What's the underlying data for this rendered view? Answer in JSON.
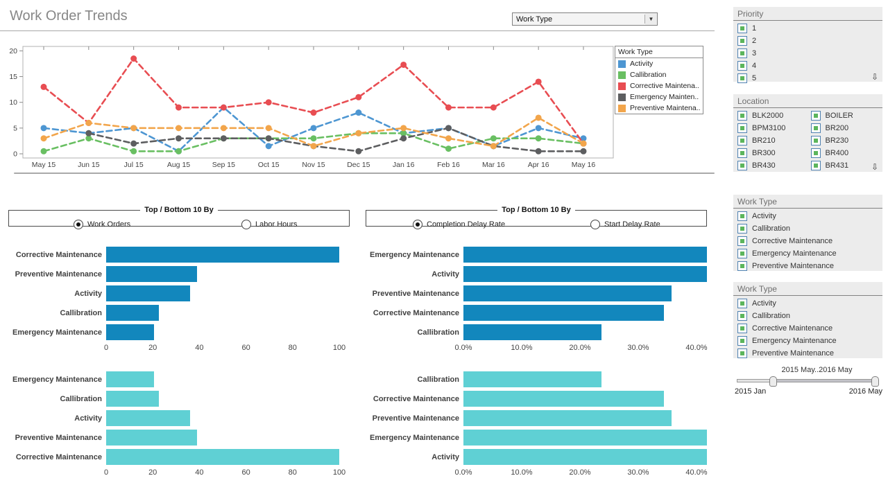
{
  "page": {
    "title": "Work Order Trends"
  },
  "toolbar": {
    "work_type_dropdown": {
      "value": "Work Type"
    }
  },
  "icons": {
    "dropdown_arrow": "▼",
    "overflow_arrow": "⇩"
  },
  "chart_data": [
    {
      "id": "work-order-trends",
      "type": "line",
      "legend_title": "Work Type",
      "legend_position": "right",
      "x": [
        "May 15",
        "Jun 15",
        "Jul 15",
        "Aug 15",
        "Sep 15",
        "Oct 15",
        "Nov 15",
        "Dec 15",
        "Jan 16",
        "Feb 16",
        "Mar 16",
        "Apr 16",
        "May 16"
      ],
      "ylim": [
        0,
        20
      ],
      "yticks": [
        0,
        5,
        10,
        15,
        20
      ],
      "line_style": "dashed",
      "series": [
        {
          "name": "Activity",
          "legend_label": "Activity",
          "color": "#4d96d2",
          "values": [
            5,
            4,
            5,
            0.5,
            9,
            1.5,
            5,
            8,
            4,
            5,
            1.5,
            5,
            3
          ]
        },
        {
          "name": "Callibration",
          "legend_label": "Callibration",
          "color": "#69bf62",
          "values": [
            0.5,
            3,
            0.5,
            0.5,
            3,
            3,
            3,
            4,
            4,
            1,
            3,
            3,
            2
          ]
        },
        {
          "name": "Corrective Maintenance",
          "legend_label": "Corrective Maintena..",
          "color": "#e84d52",
          "values": [
            13,
            6,
            18.5,
            9,
            9,
            10,
            8,
            11,
            17.3,
            9,
            9,
            14,
            2
          ]
        },
        {
          "name": "Emergency Maintenance",
          "legend_label": "Emergency Mainten..",
          "color": "#5d5e60",
          "values": [
            null,
            4,
            2,
            3,
            3,
            3,
            1.5,
            0.5,
            3,
            5,
            1.5,
            0.5,
            0.5
          ]
        },
        {
          "name": "Preventive Maintenance",
          "legend_label": "Preventive Maintena..",
          "color": "#f2a54b",
          "values": [
            3,
            6,
            5,
            5,
            5,
            5,
            1.5,
            4,
            5,
            3,
            1.5,
            7,
            2
          ]
        }
      ]
    },
    {
      "id": "work-orders-top5",
      "type": "bar",
      "orientation": "horizontal",
      "color": "#1287bd",
      "categories": [
        "Corrective Maintenance",
        "Preventive Maintenance",
        "Activity",
        "Callibration",
        "Emergency Maintenance"
      ],
      "values": [
        100,
        39,
        36,
        22.5,
        20.5
      ],
      "xticks": [
        "0",
        "20",
        "40",
        "60",
        "80",
        "100"
      ],
      "xtick_values": [
        0,
        20,
        40,
        60,
        80,
        100
      ],
      "xlim": [
        0,
        105
      ]
    },
    {
      "id": "work-orders-bottom5",
      "type": "bar",
      "orientation": "horizontal",
      "color": "#5fd0d4",
      "categories": [
        "Emergency Maintenance",
        "Callibration",
        "Activity",
        "Preventive Maintenance",
        "Corrective Maintenance"
      ],
      "values": [
        20.5,
        22.5,
        36,
        39,
        100
      ],
      "xticks": [
        "0",
        "20",
        "40",
        "60",
        "80",
        "100"
      ],
      "xtick_values": [
        0,
        20,
        40,
        60,
        80,
        100
      ],
      "xlim": [
        0,
        105
      ]
    },
    {
      "id": "completion-delay-top5",
      "type": "bar",
      "orientation": "horizontal",
      "color": "#1287bd",
      "categories": [
        "Emergency Maintenance",
        "Activity",
        "Preventive Maintenance",
        "Corrective Maintenance",
        "Callibration"
      ],
      "values": [
        41.8,
        41.8,
        35.7,
        34.4,
        23.7
      ],
      "xticks": [
        "0.0%",
        "10.0%",
        "20.0%",
        "30.0%",
        "40.0%"
      ],
      "xtick_values": [
        0,
        10,
        20,
        30,
        40
      ],
      "xlim": [
        0,
        42
      ]
    },
    {
      "id": "completion-delay-bottom5",
      "type": "bar",
      "orientation": "horizontal",
      "color": "#5fd0d4",
      "categories": [
        "Callibration",
        "Corrective Maintenance",
        "Preventive Maintenance",
        "Emergency Maintenance",
        "Activity"
      ],
      "values": [
        23.7,
        34.4,
        35.7,
        41.8,
        41.8
      ],
      "xticks": [
        "0.0%",
        "10.0%",
        "20.0%",
        "30.0%",
        "40.0%"
      ],
      "xtick_values": [
        0,
        10,
        20,
        30,
        40
      ],
      "xlim": [
        0,
        42
      ]
    }
  ],
  "left_selector": {
    "legend": "Top / Bottom 10 By",
    "options": [
      {
        "label": "Work Orders",
        "selected": true
      },
      {
        "label": "Labor Hours",
        "selected": false
      }
    ]
  },
  "right_selector": {
    "legend": "Top / Bottom 10 By",
    "options": [
      {
        "label": "Completion Delay Rate",
        "selected": true
      },
      {
        "label": "Start Delay Rate",
        "selected": false
      }
    ]
  },
  "sidebar": {
    "panels": [
      {
        "title": "Priority",
        "columns": 1,
        "overflow_arrow": true,
        "items": [
          "1",
          "2",
          "3",
          "4",
          "5"
        ]
      },
      {
        "title": "Location",
        "columns": 2,
        "overflow_arrow": true,
        "items": [
          "BLK2000",
          "BOILER",
          "BPM3100",
          "BR200",
          "BR210",
          "BR230",
          "BR300",
          "BR400",
          "BR430",
          "BR431"
        ]
      },
      {
        "title": "Work Type",
        "columns": 1,
        "overflow_arrow": false,
        "items": [
          "Activity",
          "Callibration",
          "Corrective Maintenance",
          "Emergency Maintenance",
          "Preventive Maintenance"
        ]
      },
      {
        "title": "Work Type",
        "columns": 1,
        "overflow_arrow": false,
        "items": [
          "Activity",
          "Callibration",
          "Corrective Maintenance",
          "Emergency Maintenance",
          "Preventive Maintenance"
        ]
      }
    ],
    "time_slider": {
      "range_label": "2015 May..2016 May",
      "min_label": "2015 Jan",
      "max_label": "2016 May"
    }
  }
}
